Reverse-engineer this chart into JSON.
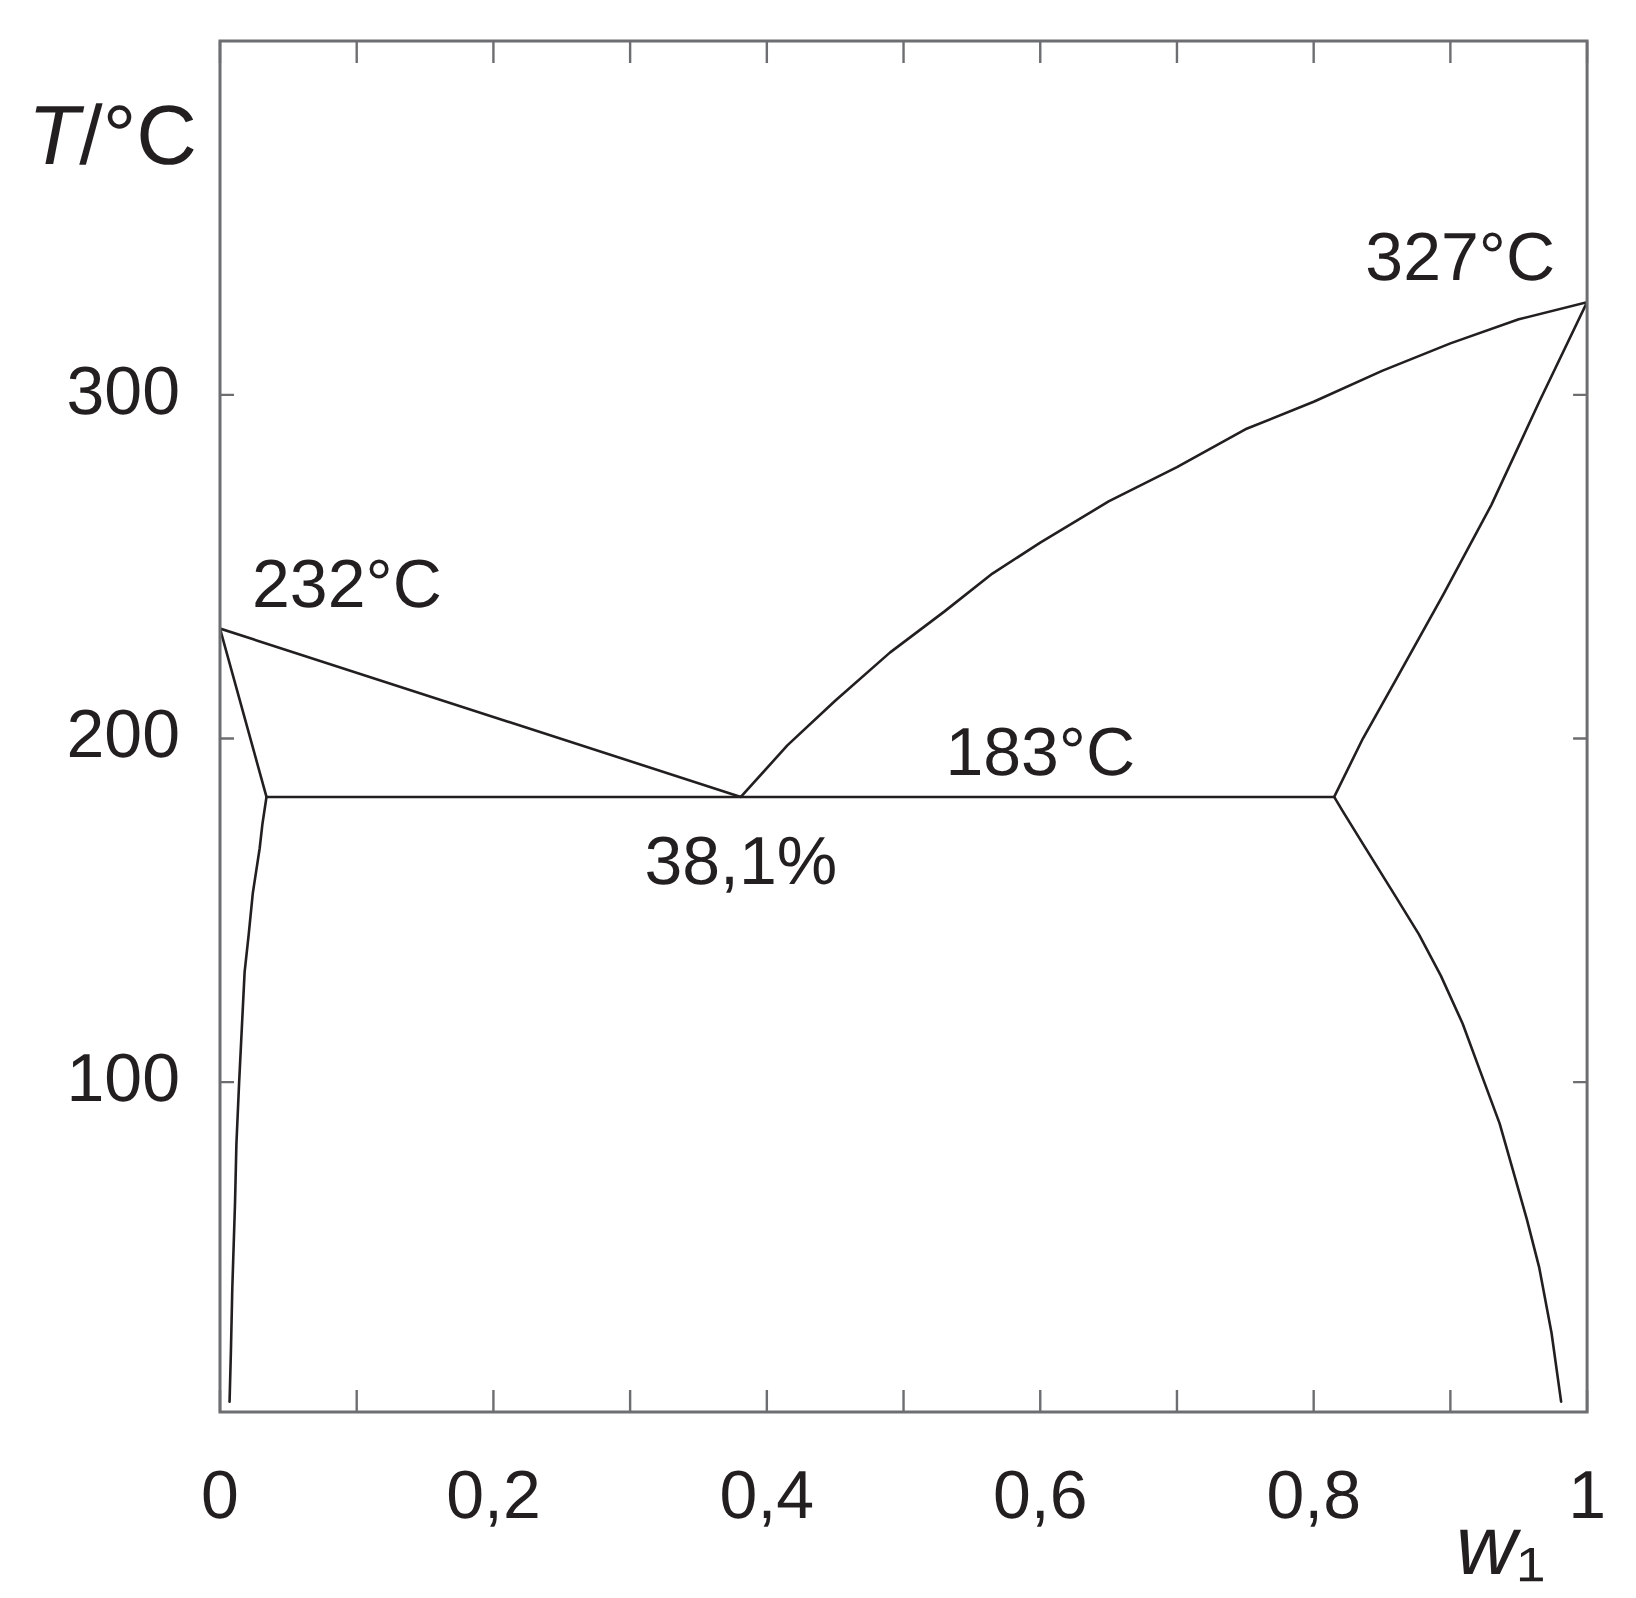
{
  "chart_data": {
    "type": "line",
    "xlabel": "w₁",
    "ylabel": "T/°C",
    "xlim": [
      0,
      1
    ],
    "ylim": [
      4,
      403
    ],
    "xticks": [
      0,
      {
        "value": 0.1,
        "label": null
      },
      {
        "value": 0.2,
        "label": "0,2"
      },
      {
        "value": 0.3,
        "label": null
      },
      {
        "value": 0.4,
        "label": "0,4"
      },
      {
        "value": 0.5,
        "label": null
      },
      {
        "value": 0.6,
        "label": "0,6"
      },
      {
        "value": 0.7,
        "label": null
      },
      {
        "value": 0.8,
        "label": "0,8"
      },
      {
        "value": 0.9,
        "label": null
      },
      1
    ],
    "yticks": [
      100,
      200,
      300
    ],
    "series": [
      {
        "color": "#231f20",
        "x": [
          0,
          0.381,
          0.415,
          0.45,
          0.49,
          0.53,
          0.565,
          0.6,
          0.65,
          0.7,
          0.75,
          0.8,
          0.85,
          0.9,
          0.95,
          1
        ],
        "values": [
          232,
          183,
          198,
          211,
          225,
          237,
          248,
          257,
          269,
          279,
          290,
          298,
          307,
          315,
          322,
          327
        ]
      },
      {
        "color": "#231f20",
        "x": [
          0.034,
          0.815
        ],
        "values": [
          183,
          183
        ]
      },
      {
        "color": "#231f20",
        "x": [
          0,
          0.034,
          0.031,
          0.029,
          0.024,
          0.021,
          0.018,
          0.016,
          0.014,
          0.012,
          0.011,
          0.009,
          0.008,
          0.007
        ],
        "values": [
          232,
          183,
          175,
          168,
          155,
          143,
          132,
          116,
          100,
          82,
          65,
          40,
          22,
          7
        ]
      },
      {
        "color": "#231f20",
        "x": [
          1,
          0.965,
          0.93,
          0.895,
          0.86,
          0.836,
          0.815,
          0.821,
          0.835,
          0.86,
          0.877,
          0.893,
          0.909,
          0.922,
          0.936,
          0.946,
          0.956,
          0.965,
          0.974,
          0.981
        ],
        "values": [
          327,
          298,
          268,
          242,
          217,
          200,
          183,
          179,
          170,
          154,
          143,
          131,
          117,
          103,
          88,
          74,
          60,
          46,
          27,
          7
        ]
      }
    ],
    "annotations": [
      {
        "text": "232°C",
        "x": 0,
        "y": 232
      },
      {
        "text": "327°C",
        "x": 1,
        "y": 327
      },
      {
        "text": "183°C",
        "x": 0.6,
        "y": 183
      },
      {
        "text": "38,1%",
        "x": 0.381,
        "y": 183
      }
    ]
  }
}
